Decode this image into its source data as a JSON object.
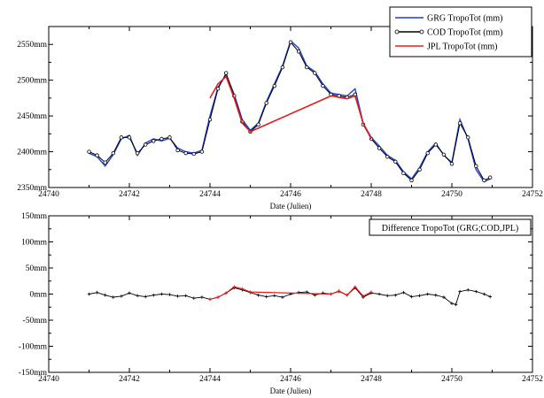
{
  "chart_data": [
    {
      "type": "line",
      "xlabel": "Date (Julien)",
      "ylabel": "",
      "xlim": [
        24740,
        24752
      ],
      "ylim": [
        2350,
        2575
      ],
      "x_ticks": [
        "24740",
        "24742",
        "24744",
        "24746",
        "24748",
        "24750",
        "24752"
      ],
      "y_ticks": [
        "2350mm",
        "2400mm",
        "2450mm",
        "2500mm",
        "2550mm"
      ],
      "y_tick_values": [
        2350,
        2400,
        2450,
        2500,
        2550
      ],
      "legend_position": "top-right",
      "series": [
        {
          "name": "GRG TropoTot (mm)",
          "color": "#1f3fd6",
          "x": [
            24741.0,
            24741.2,
            24741.4,
            24741.6,
            24741.8,
            24742.0,
            24742.2,
            24742.4,
            24742.6,
            24742.8,
            24743.0,
            24743.2,
            24743.4,
            24743.6,
            24743.8,
            24744.0,
            24744.2,
            24744.4,
            24744.6,
            24744.8,
            24745.0,
            24745.2,
            24745.4,
            24745.6,
            24745.8,
            24746.0,
            24746.2,
            24746.4,
            24746.6,
            24746.8,
            24747.0,
            24747.2,
            24747.4,
            24747.6,
            24747.8,
            24748.0,
            24748.2,
            24748.4,
            24748.6,
            24748.8,
            24749.0,
            24749.2,
            24749.4,
            24749.6,
            24749.8,
            24750.0,
            24750.2,
            24750.4,
            24750.6,
            24750.8,
            24750.95
          ],
          "values": [
            2398,
            2393,
            2380,
            2396,
            2418,
            2423,
            2395,
            2412,
            2418,
            2415,
            2419,
            2405,
            2400,
            2398,
            2402,
            2450,
            2490,
            2508,
            2480,
            2445,
            2430,
            2440,
            2470,
            2495,
            2520,
            2555,
            2545,
            2520,
            2512,
            2495,
            2482,
            2480,
            2478,
            2488,
            2440,
            2420,
            2408,
            2395,
            2388,
            2372,
            2362,
            2378,
            2400,
            2412,
            2395,
            2385,
            2445,
            2418,
            2375,
            2358,
            2362
          ]
        },
        {
          "name": "COD TropoTot (mm)",
          "color": "#000000",
          "x": [
            24741.0,
            24741.2,
            24741.4,
            24741.6,
            24741.8,
            24742.0,
            24742.2,
            24742.4,
            24742.6,
            24742.8,
            24743.0,
            24743.2,
            24743.4,
            24743.6,
            24743.8,
            24744.0,
            24744.2,
            24744.4,
            24744.6,
            24744.8,
            24745.0,
            24745.2,
            24745.4,
            24745.6,
            24745.8,
            24746.0,
            24746.2,
            24746.4,
            24746.6,
            24746.8,
            24747.0,
            24747.2,
            24747.4,
            24747.6,
            24747.8,
            24748.0,
            24748.2,
            24748.4,
            24748.6,
            24748.8,
            24749.0,
            24749.2,
            24749.4,
            24749.6,
            24749.8,
            24750.0,
            24750.2,
            24750.4,
            24750.6,
            24750.8,
            24750.95
          ],
          "values": [
            2400,
            2395,
            2385,
            2398,
            2420,
            2420,
            2398,
            2410,
            2415,
            2418,
            2420,
            2402,
            2398,
            2397,
            2400,
            2445,
            2488,
            2510,
            2478,
            2442,
            2428,
            2438,
            2468,
            2492,
            2518,
            2553,
            2540,
            2518,
            2510,
            2492,
            2480,
            2478,
            2476,
            2480,
            2438,
            2418,
            2405,
            2393,
            2386,
            2370,
            2360,
            2375,
            2398,
            2410,
            2396,
            2383,
            2440,
            2420,
            2380,
            2360,
            2364
          ]
        },
        {
          "name": "JPL TropoTot (mm)",
          "color": "#e02020",
          "x": [
            24744.0,
            24744.2,
            24744.4,
            24744.6,
            24744.8,
            24745.0,
            24747.0,
            24747.2,
            24747.4,
            24747.6,
            24747.8,
            24748.0
          ],
          "values": [
            2475,
            2495,
            2505,
            2475,
            2440,
            2428,
            2478,
            2476,
            2474,
            2478,
            2440,
            2418
          ]
        }
      ]
    },
    {
      "type": "line",
      "title": "Difference TropoTot (GRG;COD,JPL)",
      "xlabel": "Date (Julien)",
      "ylabel": "",
      "xlim": [
        24740,
        24752
      ],
      "ylim": [
        -150,
        150
      ],
      "x_ticks": [
        "24740",
        "24742",
        "24744",
        "24746",
        "24748",
        "24750",
        "24752"
      ],
      "y_ticks": [
        "-150mm",
        "-100mm",
        "-50mm",
        "0mm",
        "50mm",
        "100mm",
        "150mm"
      ],
      "y_tick_values": [
        -150,
        -100,
        -50,
        0,
        50,
        100,
        150
      ],
      "legend_position": "top-right",
      "series": [
        {
          "name": "",
          "color": "#000000",
          "x": [
            24741.0,
            24741.2,
            24741.4,
            24741.6,
            24741.8,
            24742.0,
            24742.2,
            24742.4,
            24742.6,
            24742.8,
            24743.0,
            24743.2,
            24743.4,
            24743.6,
            24743.8,
            24744.0,
            24744.2,
            24744.4,
            24744.6,
            24744.8,
            24745.0,
            24745.2,
            24745.4,
            24745.6,
            24745.8,
            24746.0,
            24746.2,
            24746.4,
            24746.6,
            24746.8,
            24747.0,
            24747.2,
            24747.4,
            24747.6,
            24747.8,
            24748.0,
            24748.2,
            24748.4,
            24748.6,
            24748.8,
            24749.0,
            24749.2,
            24749.4,
            24749.6,
            24749.8,
            24750.0,
            24750.1,
            24750.2,
            24750.4,
            24750.6,
            24750.8,
            24750.95
          ],
          "values": [
            0,
            3,
            -2,
            -6,
            -4,
            2,
            -3,
            -5,
            -2,
            0,
            -1,
            -4,
            -3,
            -8,
            -6,
            -10,
            -6,
            2,
            12,
            8,
            3,
            -2,
            -5,
            -3,
            -6,
            0,
            3,
            4,
            -2,
            2,
            0,
            5,
            -2,
            12,
            -6,
            2,
            0,
            -3,
            -2,
            3,
            -5,
            -3,
            0,
            -2,
            -6,
            -18,
            -20,
            5,
            8,
            5,
            0,
            -5
          ]
        },
        {
          "name": "",
          "color": "#e02020",
          "x": [
            24744.0,
            24744.2,
            24744.4,
            24744.6,
            24744.8,
            24745.0,
            24747.0,
            24747.2,
            24747.4,
            24747.6,
            24747.8,
            24748.0
          ],
          "values": [
            -10,
            -6,
            2,
            14,
            10,
            4,
            0,
            6,
            -2,
            14,
            -4,
            4
          ]
        }
      ]
    }
  ]
}
